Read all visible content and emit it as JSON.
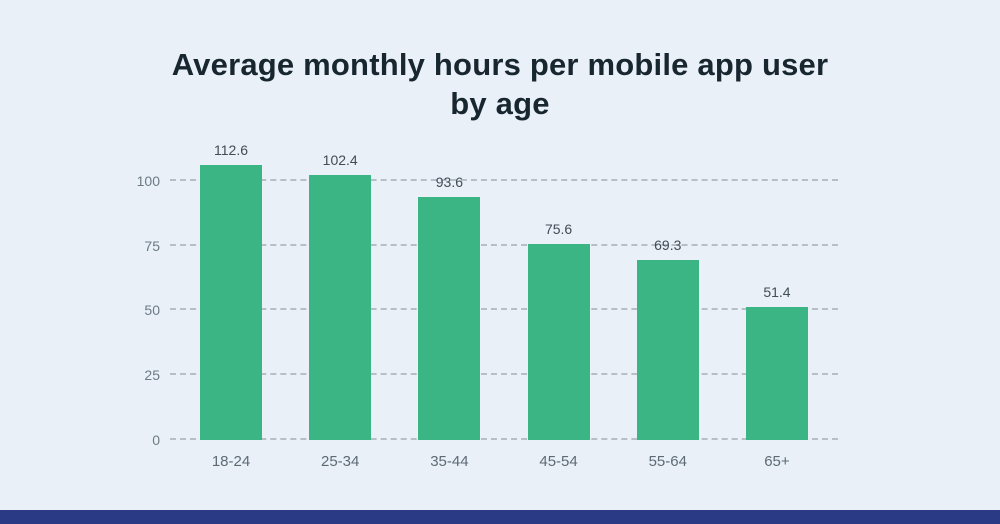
{
  "chart_data": {
    "type": "bar",
    "title": "Average monthly hours per mobile app user by age",
    "categories": [
      "18-24",
      "25-34",
      "35-44",
      "45-54",
      "55-64",
      "65+"
    ],
    "values": [
      112.6,
      102.4,
      93.6,
      75.6,
      69.3,
      51.4
    ],
    "value_labels": [
      "112.6",
      "102.4",
      "93.6",
      "75.6",
      "69.3",
      "51.4"
    ],
    "xlabel": "",
    "ylabel": "",
    "yticks": [
      0,
      25,
      50,
      75,
      100
    ],
    "ylim": [
      0,
      115
    ],
    "grid": "horizontal-dashed",
    "legend": "none",
    "bar_color": "#3bb583"
  },
  "page": {
    "background_color": "#e9f0f8",
    "footer_bar_color": "#2b3a85"
  }
}
